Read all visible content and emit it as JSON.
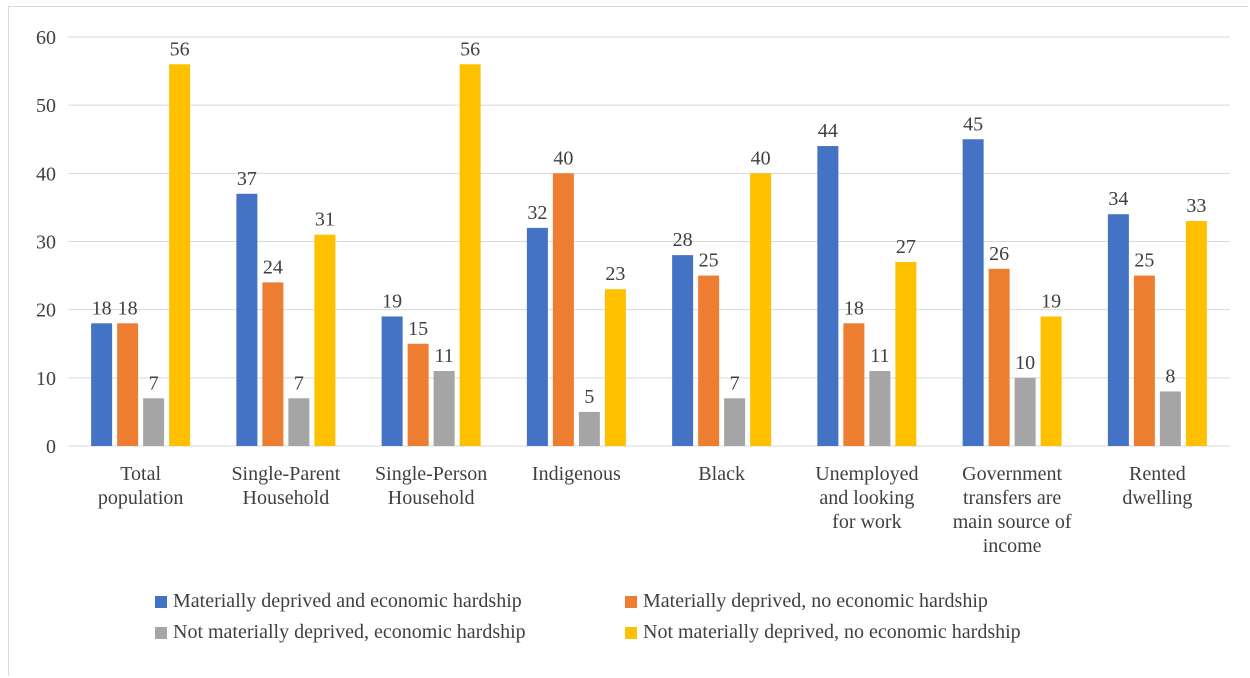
{
  "chart_data": {
    "type": "bar",
    "title": "",
    "xlabel": "",
    "ylabel": "",
    "ylim": [
      0,
      60
    ],
    "yticks": [
      0,
      10,
      20,
      30,
      40,
      50,
      60
    ],
    "grid": true,
    "legend_position": "bottom",
    "categories": [
      [
        "Total",
        "population"
      ],
      [
        "Single-Parent",
        "Household"
      ],
      [
        "Single-Person",
        "Household"
      ],
      [
        "Indigenous"
      ],
      [
        "Black"
      ],
      [
        "Unemployed",
        "and looking",
        "for work"
      ],
      [
        "Government",
        "transfers are",
        "main source of",
        "income"
      ],
      [
        "Rented",
        "dwelling"
      ]
    ],
    "series": [
      {
        "name": "Materially deprived and economic hardship",
        "color": "#4472c4",
        "values": [
          18,
          37,
          19,
          32,
          28,
          44,
          45,
          34
        ]
      },
      {
        "name": "Materially deprived, no economic hardship",
        "color": "#ed7d31",
        "values": [
          18,
          24,
          15,
          40,
          25,
          18,
          26,
          25
        ]
      },
      {
        "name": "Not materially deprived, economic hardship",
        "color": "#a5a5a5",
        "values": [
          7,
          7,
          11,
          5,
          7,
          11,
          10,
          8
        ]
      },
      {
        "name": "Not materially deprived, no economic hardship",
        "color": "#ffc000",
        "values": [
          56,
          31,
          56,
          23,
          40,
          27,
          19,
          33
        ]
      }
    ]
  }
}
